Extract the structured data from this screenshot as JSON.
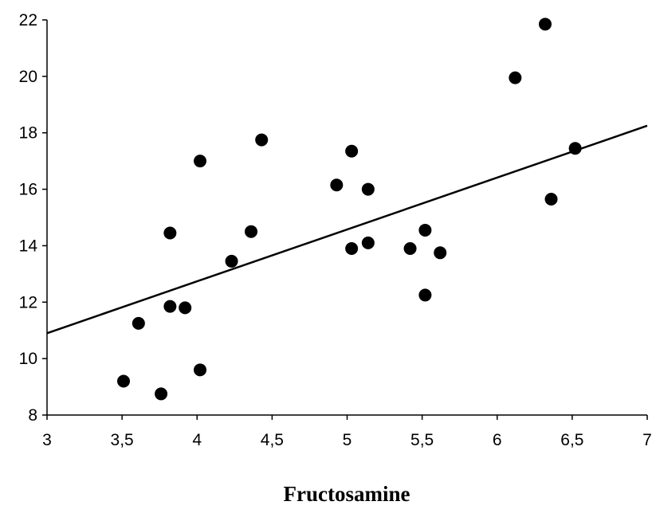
{
  "chart_data": {
    "type": "scatter",
    "title": "",
    "xlabel": "Fructosamine",
    "ylabel": "",
    "xlim": [
      3,
      7
    ],
    "ylim": [
      8,
      22
    ],
    "xticks": [
      3,
      3.5,
      4,
      4.5,
      5,
      5.5,
      6,
      6.5,
      7
    ],
    "xtick_labels": [
      "3",
      "3,5",
      "4",
      "4,5",
      "5",
      "5,5",
      "6",
      "6,5",
      "7"
    ],
    "yticks": [
      8,
      10,
      12,
      14,
      16,
      18,
      20,
      22
    ],
    "ytick_labels": [
      "8",
      "10",
      "12",
      "14",
      "16",
      "18",
      "20",
      "22"
    ],
    "grid": false,
    "marker_color": "#000000",
    "series": [
      {
        "points": [
          [
            3.51,
            9.2
          ],
          [
            3.61,
            11.25
          ],
          [
            3.76,
            8.75
          ],
          [
            3.82,
            11.85
          ],
          [
            3.82,
            14.45
          ],
          [
            3.92,
            11.8
          ],
          [
            4.02,
            9.6
          ],
          [
            4.02,
            17.0
          ],
          [
            4.23,
            13.45
          ],
          [
            4.36,
            14.5
          ],
          [
            4.43,
            17.75
          ],
          [
            4.93,
            16.15
          ],
          [
            5.03,
            13.9
          ],
          [
            5.03,
            17.35
          ],
          [
            5.14,
            14.1
          ],
          [
            5.14,
            16.0
          ],
          [
            5.42,
            13.9
          ],
          [
            5.52,
            14.55
          ],
          [
            5.52,
            12.25
          ],
          [
            5.62,
            13.75
          ],
          [
            6.12,
            19.95
          ],
          [
            6.32,
            21.85
          ],
          [
            6.36,
            15.65
          ],
          [
            6.52,
            17.45
          ]
        ]
      }
    ],
    "regression_line": {
      "x": [
        3,
        7
      ],
      "y": [
        10.9,
        18.25
      ]
    }
  }
}
